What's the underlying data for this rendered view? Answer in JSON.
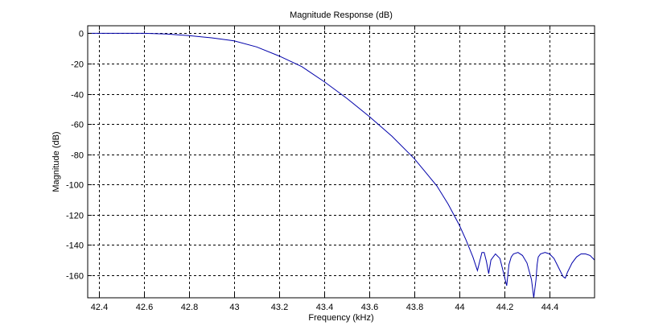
{
  "chart_data": {
    "type": "line",
    "title": "Magnitude Response (dB)",
    "xlabel": "Frequency (kHz)",
    "ylabel": "Magnitude (dB)",
    "xlim": [
      42.35,
      44.6
    ],
    "ylim": [
      -175,
      5
    ],
    "grid": true,
    "xticks": [
      42.4,
      42.6,
      42.8,
      43,
      43.2,
      43.4,
      43.6,
      43.8,
      44,
      44.2,
      44.4
    ],
    "xtick_labels": [
      "42.4",
      "42.6",
      "42.8",
      "43",
      "43.2",
      "43.4",
      "43.6",
      "43.8",
      "44",
      "44.2",
      "44.4"
    ],
    "yticks": [
      0,
      -20,
      -40,
      -60,
      -80,
      -100,
      -120,
      -140,
      -160
    ],
    "ytick_labels": [
      "0",
      "-20",
      "-40",
      "-60",
      "-80",
      "-100",
      "-120",
      "-140",
      "-160"
    ],
    "series": [
      {
        "color": "#0000aa",
        "x": [
          42.35,
          42.5,
          42.6,
          42.7,
          42.8,
          42.9,
          43.0,
          43.1,
          43.2,
          43.3,
          43.4,
          43.5,
          43.6,
          43.7,
          43.8,
          43.85,
          43.9,
          43.95,
          44.0,
          44.03,
          44.06,
          44.08,
          44.09,
          44.1,
          44.11,
          44.12,
          44.13,
          44.14,
          44.16,
          44.18,
          44.19,
          44.2,
          44.21,
          44.22,
          44.23,
          44.24,
          44.26,
          44.28,
          44.3,
          44.32,
          44.33,
          44.34,
          44.345,
          44.35,
          44.36,
          44.38,
          44.4,
          44.42,
          44.44,
          44.46,
          44.47,
          44.48,
          44.5,
          44.52,
          44.54,
          44.56,
          44.58,
          44.6
        ],
        "y": [
          0,
          0,
          0,
          -0.5,
          -1.5,
          -3,
          -5,
          -9,
          -15,
          -22,
          -32,
          -43,
          -55,
          -68,
          -83,
          -92,
          -101,
          -113,
          -127,
          -137,
          -148,
          -157,
          -151,
          -145,
          -145,
          -151,
          -159,
          -150,
          -146,
          -149,
          -155,
          -161,
          -167,
          -153,
          -148,
          -146,
          -145,
          -147,
          -152,
          -163,
          -175,
          -163,
          -153,
          -148,
          -146,
          -145,
          -146,
          -149,
          -155,
          -161,
          -162,
          -158,
          -152,
          -148,
          -146,
          -146,
          -147,
          -150
        ]
      }
    ]
  }
}
